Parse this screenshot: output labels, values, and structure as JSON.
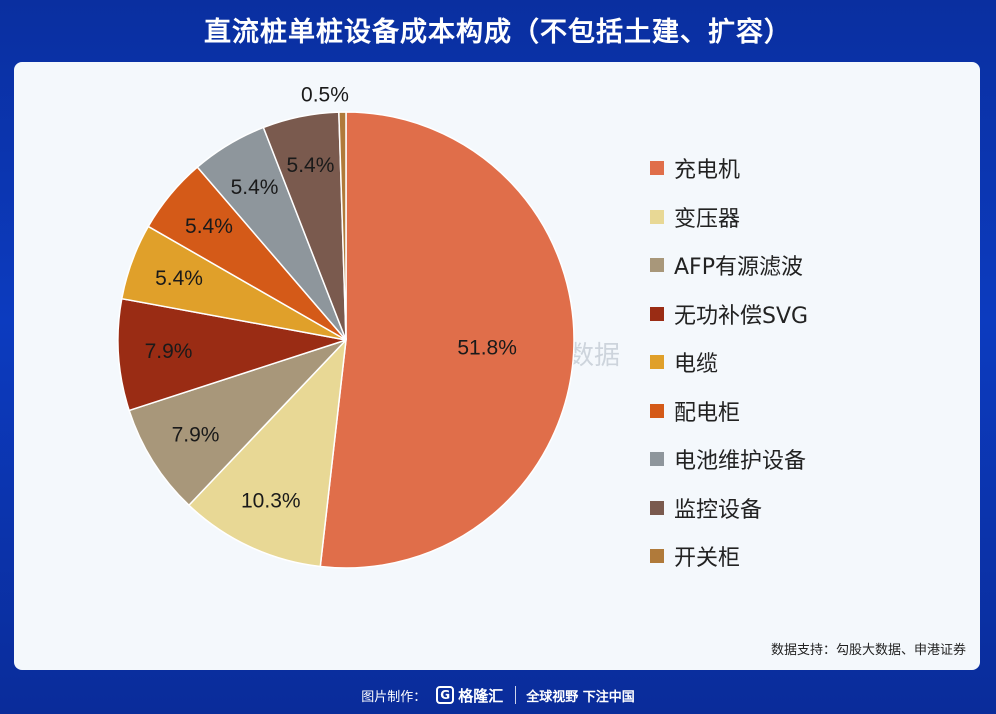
{
  "title": "直流桩单桩设备成本构成（不包括土建、扩容）",
  "source_note": "数据支持：勾股大数据、申港证券",
  "watermark": {
    "brand": "格隆汇",
    "icon_letter": "G",
    "text": "勾股大数据"
  },
  "footer": {
    "made_by": "图片制作：",
    "icon_letter": "G",
    "brand": "格隆汇",
    "slogan": "全球视野 下注中国"
  },
  "chart_data": {
    "type": "pie",
    "start_angle_deg": 0,
    "direction": "clockwise",
    "legend_position": "right",
    "slices": [
      {
        "label": "充电机",
        "value": 51.8,
        "display": "51.8%",
        "color": "#e06e4a"
      },
      {
        "label": "变压器",
        "value": 10.3,
        "display": "10.3%",
        "color": "#e8d895"
      },
      {
        "label": "AFP有源滤波",
        "value": 7.9,
        "display": "7.9%",
        "color": "#a8977a"
      },
      {
        "label": "无功补偿SVG",
        "value": 7.9,
        "display": "7.9%",
        "color": "#9a2c14"
      },
      {
        "label": "电缆",
        "value": 5.4,
        "display": "5.4%",
        "color": "#e0a02a"
      },
      {
        "label": "配电柜",
        "value": 5.4,
        "display": "5.4%",
        "color": "#d45a18"
      },
      {
        "label": "电池维护设备",
        "value": 5.4,
        "display": "5.4%",
        "color": "#8e969c"
      },
      {
        "label": "监控设备",
        "value": 5.4,
        "display": "5.4%",
        "color": "#7a5a4e"
      },
      {
        "label": "开关柜",
        "value": 0.5,
        "display": "0.5%",
        "color": "#b07a3a"
      }
    ]
  }
}
